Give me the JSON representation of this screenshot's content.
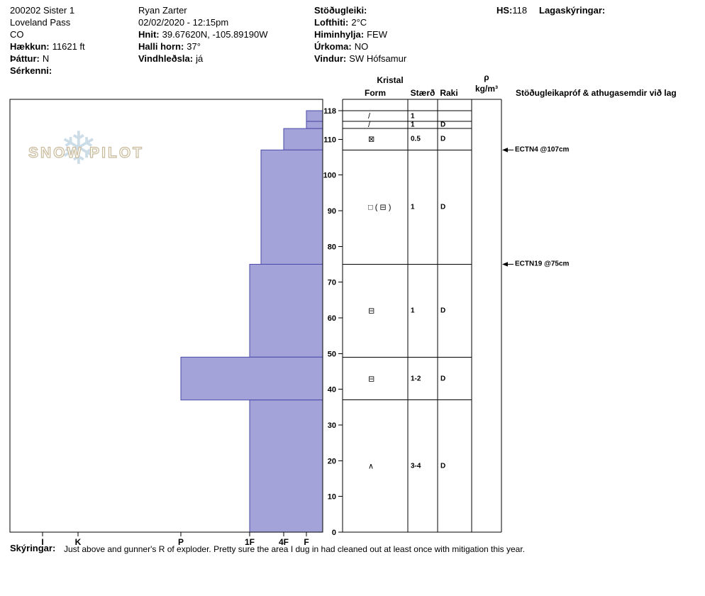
{
  "header": {
    "pit_name": "200202 Sister 1",
    "location": "Loveland Pass",
    "state": "CO",
    "elevation_label": "Hækkun:",
    "elevation_value": "11621 ft",
    "aspect_label": "Þáttur:",
    "aspect_value": "N",
    "special_label": "Sérkenni:",
    "observer": "Ryan Zarter",
    "datetime": "02/02/2020 - 12:15pm",
    "coords_label": "Hnit:",
    "coords_value": "39.67620N, -105.89190W",
    "slope_label": "Halli horn:",
    "slope_value": "37°",
    "windload_label": "Vindhleðsla:",
    "windload_value": "já",
    "stability_label": "Stöðugleiki:",
    "airtemp_label": "Lofthiti:",
    "airtemp_value": "2°C",
    "sky_label": "Himinhylja:",
    "sky_value": "FEW",
    "precip_label": "Úrkoma:",
    "precip_value": "NO",
    "wind_label": "Vindur:",
    "wind_value": "SW Hófsamur",
    "hs_label": "HS:",
    "hs_value": "118",
    "layer_notes_label": "Lagaskýringar:"
  },
  "logo": {
    "text": "SNOW PILOT",
    "snowflake_icon": "❄"
  },
  "table": {
    "group_header": "Kristal",
    "columns": [
      "Form",
      "Stærð",
      "Raki"
    ],
    "density_rho": "ρ",
    "density_units": "kg/m³",
    "tests_header": "Stöðugleikapróf & athugasemdir við lag"
  },
  "chart_data": {
    "type": "bar",
    "hs_cm": 118,
    "depth_axis": {
      "unit": "cm",
      "ticks": [
        118,
        110,
        100,
        90,
        80,
        70,
        60,
        50,
        40,
        30,
        20,
        10,
        0
      ]
    },
    "hardness_axis": {
      "ticks": [
        "I",
        "K",
        "P",
        "1F",
        "4F",
        "F"
      ]
    },
    "layers": [
      {
        "top_cm": 118,
        "bottom_cm": 115,
        "hardness": "F",
        "form": "/",
        "size": "1",
        "moisture": ""
      },
      {
        "top_cm": 115,
        "bottom_cm": 113,
        "hardness": "F",
        "form": "/",
        "size": "1",
        "moisture": "D"
      },
      {
        "top_cm": 113,
        "bottom_cm": 107,
        "hardness": "4F",
        "form": "⊠",
        "size": "0.5",
        "moisture": "D"
      },
      {
        "top_cm": 107,
        "bottom_cm": 75,
        "hardness": "1F+",
        "form": "□ ( ⊟ )",
        "size": "1",
        "moisture": "D"
      },
      {
        "top_cm": 75,
        "bottom_cm": 49,
        "hardness": "1F",
        "form": "⊟",
        "size": "1",
        "moisture": "D"
      },
      {
        "top_cm": 49,
        "bottom_cm": 37,
        "hardness": "P",
        "form": "⊟",
        "size": "1-2",
        "moisture": "D"
      },
      {
        "top_cm": 37,
        "bottom_cm": 0,
        "hardness": "1F",
        "form": "∧",
        "size": "3-4",
        "moisture": "D"
      }
    ],
    "tests": [
      {
        "label": "ECTN4 @107cm",
        "depth_cm": 107
      },
      {
        "label": "ECTN19 @75cm",
        "depth_cm": 75
      }
    ],
    "bar_fill": "#a3a3d9",
    "bar_stroke": "#4a4aa8"
  },
  "footer": {
    "label": "Skýringar:",
    "text": "Just above and gunner's R of exploder.  Pretty sure the area I dug in had cleaned out at least once with mitigation this year."
  }
}
